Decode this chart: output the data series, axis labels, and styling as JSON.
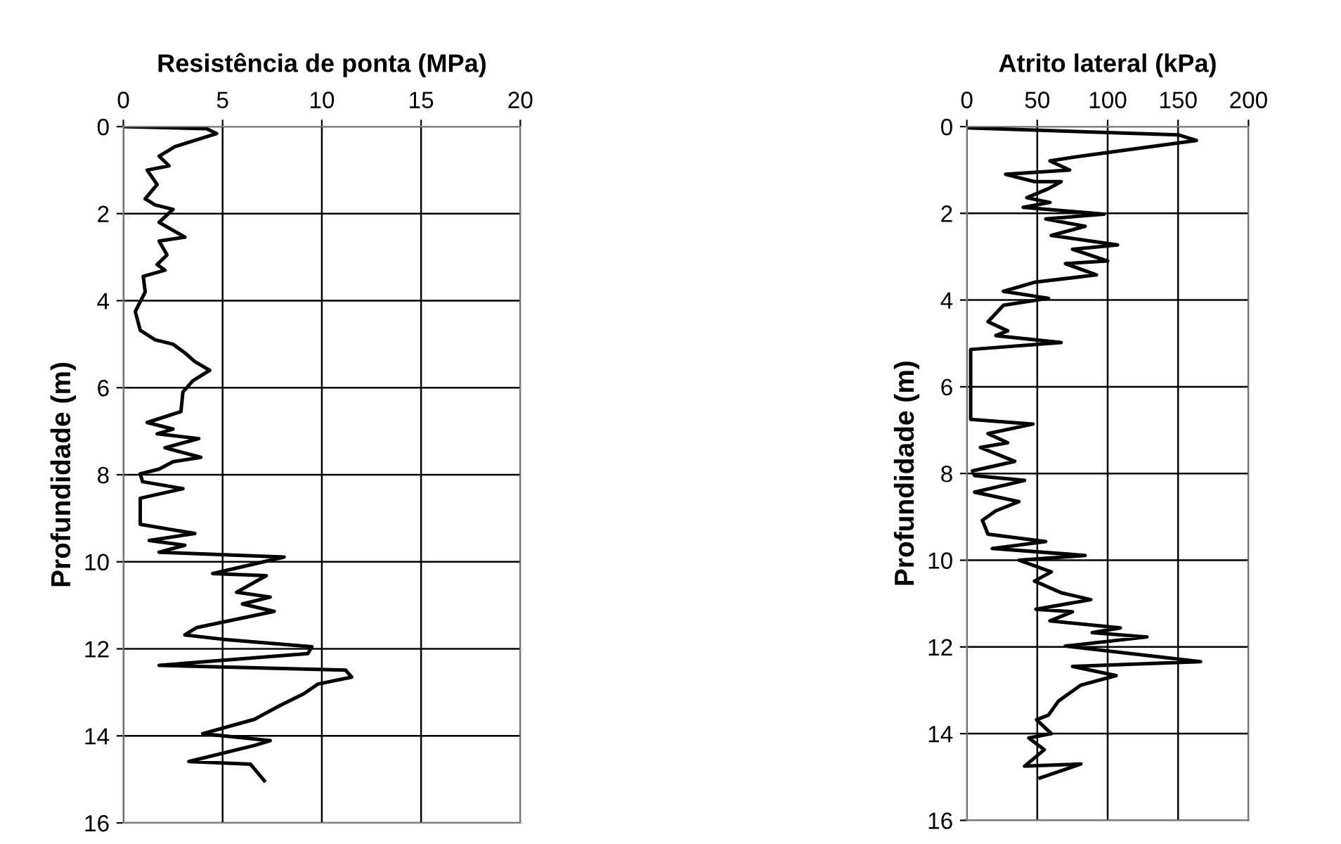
{
  "chart_data": [
    {
      "type": "line",
      "title": "Resistência de ponta (MPa)",
      "ylabel": "Profundidade (m)",
      "xlim": [
        0,
        20
      ],
      "xticks": [
        0,
        5,
        10,
        15,
        20
      ],
      "ylim": [
        16,
        0
      ],
      "yticks": [
        0,
        2,
        4,
        6,
        8,
        10,
        12,
        14,
        16
      ],
      "grid": true,
      "series": [
        {
          "color": "#000000",
          "x": [
            0,
            4.2,
            4.7,
            2.6,
            1.8,
            2.3,
            1.2,
            1.7,
            1.1,
            1.6,
            2.5,
            1.8,
            3.1,
            1.8,
            2.2,
            1.7,
            2.1,
            1.0,
            1.1,
            0.6,
            0.85,
            1.6,
            2.5,
            3.1,
            3.6,
            4.35,
            3.5,
            3.0,
            2.9,
            1.2,
            2.5,
            1.7,
            3.8,
            2.1,
            3.9,
            2.5,
            1.8,
            0.85,
            0.97,
            3.0,
            0.85,
            0.85,
            3.6,
            1.3,
            3.1,
            1.8,
            8.1,
            4.5,
            7.2,
            5.7,
            7.4,
            6.0,
            7.6,
            3.7,
            3.1,
            5.0,
            9.5,
            9.3,
            1.8,
            11.2,
            11.5,
            9.8,
            9.1,
            7.9,
            6.6,
            4.0,
            7.4,
            6.6,
            3.3,
            6.4,
            7.1
          ],
          "values": [
            0,
            0.05,
            0.16,
            0.46,
            0.68,
            0.9,
            1.0,
            1.33,
            1.66,
            1.8,
            1.9,
            2.2,
            2.54,
            2.63,
            2.95,
            3.17,
            3.3,
            3.44,
            3.8,
            4.25,
            4.68,
            4.9,
            5.0,
            5.2,
            5.4,
            5.6,
            5.84,
            6.1,
            6.55,
            6.8,
            6.95,
            7.06,
            7.17,
            7.38,
            7.6,
            7.7,
            7.87,
            7.98,
            8.16,
            8.32,
            8.54,
            9.14,
            9.35,
            9.51,
            9.62,
            9.78,
            9.89,
            10.27,
            10.32,
            10.7,
            10.81,
            10.97,
            11.14,
            11.51,
            11.68,
            11.78,
            11.95,
            12.11,
            12.38,
            12.49,
            12.65,
            12.81,
            13.03,
            13.3,
            13.62,
            13.95,
            14.11,
            14.22,
            14.59,
            14.65,
            15.03
          ]
        }
      ]
    },
    {
      "type": "line",
      "title": "Atrito lateral (kPa)",
      "ylabel": "Profundidade (m)",
      "xlim": [
        0,
        200
      ],
      "xticks": [
        0,
        50,
        100,
        150,
        200
      ],
      "ylim": [
        16,
        0
      ],
      "yticks": [
        0,
        2,
        4,
        6,
        8,
        10,
        12,
        14,
        16
      ],
      "grid": true,
      "series": [
        {
          "color": "#000000",
          "x": [
            0,
            150,
            163,
            81,
            59,
            73,
            27.5,
            48,
            67,
            58,
            42.6,
            59,
            40,
            97.5,
            56,
            84,
            60,
            107,
            75,
            100,
            70,
            92,
            48,
            26,
            58,
            26,
            15,
            29,
            20.6,
            67,
            2.7,
            2.7,
            47,
            15,
            29,
            9.6,
            34,
            4,
            5.5,
            41,
            5.5,
            37,
            20.6,
            11,
            15,
            56,
            18,
            84,
            37,
            60,
            48,
            67,
            88,
            49,
            75,
            59,
            109,
            89,
            128,
            70,
            166,
            75,
            106,
            81,
            65,
            58,
            49.5,
            60,
            44,
            55,
            41,
            81,
            52
          ],
          "values": [
            0.03,
            0.19,
            0.32,
            0.68,
            0.79,
            1.0,
            1.1,
            1.27,
            1.27,
            1.43,
            1.64,
            1.75,
            1.86,
            2.02,
            2.13,
            2.3,
            2.51,
            2.73,
            2.83,
            3.1,
            3.16,
            3.42,
            3.59,
            3.8,
            3.96,
            4.12,
            4.5,
            4.71,
            4.82,
            4.98,
            5.14,
            6.75,
            6.86,
            7.08,
            7.29,
            7.4,
            7.72,
            7.94,
            8.05,
            8.16,
            8.43,
            8.65,
            8.86,
            9.08,
            9.4,
            9.57,
            9.73,
            9.89,
            10.0,
            10.27,
            10.48,
            10.75,
            10.91,
            11.13,
            11.19,
            11.4,
            11.56,
            11.67,
            11.77,
            11.98,
            12.34,
            12.45,
            12.66,
            12.88,
            13.25,
            13.57,
            13.68,
            14.0,
            14.1,
            14.37,
            14.75,
            14.7,
            15.02
          ]
        }
      ]
    }
  ]
}
